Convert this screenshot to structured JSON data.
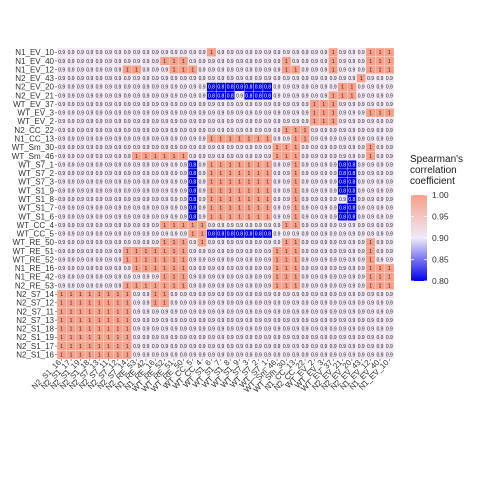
{
  "chart_data": {
    "type": "heatmap",
    "title": "",
    "xlabel": "",
    "ylabel": "",
    "rows": [
      "N1_EV_10",
      "N1_EV_40",
      "N1_EV_12",
      "N2_EV_43",
      "N2_EV_20",
      "N2_EV_21",
      "WT_EV_37",
      "WT_EV_3",
      "WT_EV_2",
      "N2_CC_22",
      "N1_CC_13",
      "WT_Sm_30",
      "WT_Sm_46",
      "WT_S7_1",
      "WT_S7_2",
      "WT_S7_3",
      "WT_S1_9",
      "WT_S1_8",
      "WT_S1_7",
      "WT_S1_6",
      "WT_CC_4",
      "WT_CC_5",
      "WT_RE_50",
      "WT_RE_51",
      "WT_RE_52",
      "N1_RE_16",
      "N1_RE_42",
      "N2_RE_53",
      "N2_S7_14",
      "N2_S7_12",
      "N2_S7_11",
      "N2_S7_13",
      "N2_S1_18",
      "N2_S1_19",
      "N2_S1_17",
      "N2_S1_16"
    ],
    "columns": [
      "N2_S1_16",
      "N2_S1_17",
      "N2_S1_19",
      "N2_S1_18",
      "N2_S7_13",
      "N2_S7_11",
      "N2_S7_12",
      "N2_S7_14",
      "N2_RE_53",
      "N1_RE_42",
      "N1_RE_16",
      "WT_RE_52",
      "WT_RE_51",
      "WT_RE_50",
      "WT_CC_5",
      "WT_CC_4",
      "WT_S1_6",
      "WT_S1_7",
      "WT_S1_8",
      "WT_S1_9",
      "WT_S7_3",
      "WT_S7_2",
      "WT_S7_1",
      "WT_Sm_46",
      "WT_Sm_30",
      "N1_CC_13",
      "N2_CC_22",
      "WT_EV_2",
      "WT_EV_3",
      "WT_EV_37",
      "N2_EV_21",
      "N2_EV_20",
      "N2_EV_43",
      "N1_EV_12",
      "N1_EV_40",
      "N1_EV_10"
    ],
    "values_text": [
      "0.9|0.9|0.9|0.9|0.9|0.9|0.9|0.9|0.9|0.9|0.9|0.9|0.9|0.9|0.9|0.9|1|0.9|0.9|0.9|0.9|0.9|0.9|0.9|0.9|0.9|0.9|0.9|0.9|1|0.9|0.9|0.9|1|1|1",
      "0.9|0.9|0.9|0.9|0.9|0.9|0.9|0.9|0.9|0.9|0.9|1|1|1|0.9|0.9|0.9|0.9|0.9|0.9|0.9|0.9|0.9|0.9|1|0.9|0.9|0.9|0.9|1|0.9|0.9|0.9|1|1|1",
      "0.9|0.9|0.9|0.9|0.9|0.9|0.9|1|1|0.9|0.9|0.9|1|1|1|0.9|0.9|0.9|0.9|0.9|0.9|0.9|0.9|0.9|1|1|0.9|0.9|0.9|1|0.9|0.9|0.9|1|1|1",
      "0.9|0.9|0.9|0.9|0.9|0.9|0.9|0.9|0.9|0.9|0.9|0.9|0.9|0.9|0.9|0.9|0.9|0.9|0.9|0.9|0.9|0.9|0.9|0.9|0.9|0.9|0.9|0.9|0.9|0.9|0.9|0.9|1|0.9|0.9|0.9",
      "0.9|0.9|0.9|0.9|0.9|0.9|0.9|0.9|0.9|0.9|0.9|0.9|0.9|0.9|0.9|0.9|0.8|0.8|0.8|0.8|0.8|0.8|0.8|0.9|0.9|0.9|0.9|0.9|0.9|0.9|1|1|0.9|0.9|0.9|0.9",
      "0.9|0.9|0.9|0.9|0.9|0.9|0.9|0.9|0.9|0.9|0.9|0.9|0.9|0.9|0.9|0.9|0.8|0.8|0.8|0.9|0.8|0.8|0.8|0.9|0.9|0.9|0.9|0.9|0.9|1|1|1|0.9|0.9|0.9|0.9",
      "0.9|0.9|0.9|0.9|0.9|0.9|0.9|0.9|0.9|0.9|0.9|0.9|0.9|0.9|0.9|0.9|0.9|0.9|0.9|0.9|0.9|0.9|0.9|0.9|0.9|0.9|0.9|1|1|1|0.9|0.9|0.9|0.9|0.9|0.9",
      "0.9|0.9|0.9|0.9|0.9|0.9|0.9|0.9|0.9|0.9|0.9|0.9|0.9|0.9|0.9|0.9|0.9|0.9|0.9|0.9|0.9|0.9|0.9|0.9|0.9|0.9|0.9|1|1|1|0.9|0.9|0.9|1|1|1",
      "0.9|0.9|0.9|0.9|0.9|0.9|0.9|0.9|0.9|0.9|0.9|0.9|0.9|0.9|0.9|0.9|0.9|0.9|0.9|0.9|0.9|0.9|0.9|0.9|0.9|0.9|0.9|1|1|1|0.9|0.9|0.9|0.9|0.9|0.9",
      "0.9|0.9|0.9|0.9|0.9|0.9|0.9|0.9|0.9|0.9|0.9|0.9|0.9|0.9|0.9|0.9|0.9|0.9|0.9|0.9|0.9|0.9|0.9|0.9|1|1|1|0.9|0.9|0.9|0.9|0.9|0.9|0.9|0.9|0.9",
      "0.9|0.9|0.9|0.9|0.9|0.9|0.9|0.9|0.9|0.9|0.9|0.9|0.9|0.9|0.9|0.9|1|1|1|1|1|1|1|0.9|0.9|1|1|0.9|0.9|0.9|0.9|0.9|0.9|0.9|0.9|0.9",
      "0.9|0.9|0.9|0.9|0.9|0.9|0.9|0.9|0.9|0.9|0.9|0.9|0.9|0.9|0.9|0.9|0.9|0.9|0.9|0.9|0.9|0.9|0.9|1|1|1|0.9|0.9|0.9|0.9|0.9|0.9|0.9|1|0.9|0.9",
      "0.9|0.9|0.9|0.9|0.9|0.9|0.9|0.9|1|1|1|1|1|1|0.9|0.9|0.9|0.9|0.9|0.9|0.9|0.9|0.9|1|1|1|0.9|0.9|0.9|0.9|0.9|0.9|0.9|1|0.9|0.9",
      "0.9|0.9|0.9|0.9|0.9|0.9|0.9|0.9|0.9|0.9|0.9|0.9|0.9|0.9|0.8|0.9|1|1|1|1|1|1|1|0.9|0.9|1|0.9|0.9|0.9|0.9|0.8|0.8|0.9|0.9|0.9|0.9",
      "0.9|0.9|0.9|0.9|0.9|0.9|0.9|0.9|0.9|0.9|0.9|0.9|0.9|0.9|0.8|0.9|1|1|1|1|1|1|1|0.9|0.9|1|0.9|0.9|0.9|0.9|0.8|0.8|0.9|0.9|0.9|0.9",
      "0.9|0.9|0.9|0.9|0.9|0.9|0.9|0.9|0.9|0.9|0.9|0.9|0.9|0.9|0.8|0.9|1|1|1|1|1|1|1|0.9|0.9|1|0.9|0.9|0.9|0.9|0.8|0.8|0.9|0.9|0.9|0.9",
      "0.9|0.9|0.9|0.9|0.9|0.9|0.9|0.9|0.9|0.9|0.9|0.9|0.9|0.9|0.8|0.9|1|1|1|1|1|1|1|0.9|0.9|1|0.9|0.9|0.9|0.9|0.8|0.8|0.9|0.9|0.9|0.9",
      "0.9|0.9|0.9|0.9|0.9|0.9|0.9|0.9|0.9|0.9|0.9|0.9|0.9|0.9|0.8|0.9|1|1|1|1|1|1|1|0.9|0.9|1|0.9|0.9|0.9|0.9|0.9|0.8|0.9|0.9|0.9|0.9",
      "0.9|0.9|0.9|0.9|0.9|0.9|0.9|0.9|0.9|0.9|0.9|0.9|0.9|0.9|0.8|0.9|1|1|1|1|1|1|1|0.9|0.9|1|0.9|0.9|0.9|0.9|0.8|0.8|0.9|0.9|0.9|0.9",
      "0.9|0.9|0.9|0.9|0.9|0.9|0.9|0.9|0.9|0.9|0.9|0.9|0.9|0.9|0.8|0.9|1|1|1|1|1|1|1|0.9|0.9|1|0.9|0.9|0.9|0.9|0.8|0.8|0.9|0.9|0.9|0.9",
      "0.9|0.9|0.9|0.9|0.9|0.9|0.9|0.9|0.9|0.9|0.9|1|1|1|1|1|0.9|0.9|0.9|0.9|0.9|0.9|0.9|0.9|1|1|0.9|0.9|0.9|0.9|0.9|0.9|0.9|0.9|0.9|0.9",
      "0.9|0.9|0.9|0.9|0.9|0.9|0.9|0.9|0.9|0.9|0.9|0.9|0.9|0.9|1|1|0.8|0.8|0.8|0.8|0.8|0.8|0.8|0.9|0.9|0.9|0.9|0.9|0.9|0.9|0.9|0.9|0.9|0.9|0.9|0.9",
      "0.9|0.9|0.9|0.9|0.9|0.9|0.9|0.9|0.9|0.9|0.9|1|1|1|0.9|1|0.9|0.9|0.9|0.9|0.9|0.9|0.9|0.9|1|1|0.9|0.9|0.9|0.9|0.9|0.9|0.9|1|0.9|0.9",
      "0.9|0.9|0.9|0.9|0.9|0.9|0.9|1|1|1|1|1|1|1|0.9|0.9|0.9|0.9|0.9|0.9|0.9|0.9|0.9|1|1|1|0.9|0.9|0.9|0.9|0.9|0.9|0.9|1|0.9|0.9",
      "0.9|0.9|0.9|0.9|0.9|0.9|0.9|1|1|1|1|1|1|1|0.9|0.9|0.9|0.9|0.9|0.9|0.9|0.9|0.9|1|1|1|0.9|0.9|0.9|0.9|0.9|0.9|0.9|1|0.9|0.9",
      "0.9|0.9|0.9|0.9|0.9|0.9|0.9|0.9|1|1|1|1|1|1|0.9|0.9|0.9|0.9|0.9|0.9|0.9|0.9|0.9|1|1|1|0.9|0.9|0.9|0.9|0.9|0.9|0.9|1|1|1",
      "0.9|0.9|0.9|0.9|0.9|0.9|0.9|0.9|0.9|0.9|0.9|1|1|1|0.9|0.9|0.9|0.9|0.9|0.9|0.9|0.9|0.9|1|1|1|0.9|0.9|0.9|0.9|0.9|0.9|0.9|1|1|1",
      "0.9|0.9|0.9|0.9|0.9|0.9|0.9|1|1|1|1|1|1|1|0.9|0.9|0.9|0.9|0.9|0.9|0.9|0.9|0.9|1|1|1|0.9|0.9|0.9|0.9|0.9|0.9|0.9|1|1|1",
      "1|1|1|1|1|1|1|1|0.9|0.9|1|1|0.9|0.9|0.9|0.9|0.9|0.9|0.9|0.9|0.9|0.9|0.9|0.9|0.9|0.9|0.9|0.9|0.9|0.9|0.9|0.9|0.9|0.9|0.9|0.9",
      "1|1|1|1|1|1|1|1|0.9|0.9|1|1|0.9|0.9|0.9|0.9|0.9|0.9|0.9|0.9|0.9|0.9|0.9|0.9|0.9|0.9|0.9|0.9|0.9|0.9|0.9|0.9|0.9|0.9|0.9|0.9",
      "1|1|1|1|1|1|1|1|0.9|0.9|0.9|0.9|0.9|0.9|0.9|0.9|0.9|0.9|0.9|0.9|0.9|0.9|0.9|0.9|0.9|0.9|0.9|0.9|0.9|0.9|0.9|0.9|0.9|0.9|0.9|0.9",
      "1|1|1|1|1|1|1|1|0.9|0.9|0.9|0.9|0.9|0.9|0.9|0.9|0.9|0.9|0.9|0.9|0.9|0.9|0.9|0.9|0.9|0.9|0.9|0.9|0.9|0.9|0.9|0.9|0.9|0.9|0.9|0.9",
      "1|1|1|1|1|1|1|1|0.9|0.9|0.9|0.9|0.9|0.9|0.9|0.9|0.9|0.9|0.9|0.9|0.9|0.9|0.9|0.9|0.9|0.9|0.9|0.9|0.9|0.9|0.9|0.9|0.9|0.9|0.9|0.9",
      "1|1|1|1|1|1|1|1|0.9|0.9|0.9|0.9|0.9|0.9|0.9|0.9|0.9|0.9|0.9|0.9|0.9|0.9|0.9|0.9|0.9|0.9|0.9|0.9|0.9|0.9|0.9|0.9|0.9|0.9|0.9|0.9",
      "1|1|1|1|1|1|1|1|0.9|0.9|0.9|0.9|0.9|0.9|0.9|0.9|0.9|0.9|0.9|0.9|0.9|0.9|0.9|0.9|0.9|0.9|0.9|0.9|0.9|0.9|0.9|0.9|0.9|0.9|0.9|0.9",
      "1|1|1|1|1|1|1|1|0.9|0.9|0.9|0.9|0.9|0.9|0.9|0.9|0.9|0.9|0.9|0.9|0.9|0.9|0.9|0.9|0.9|0.9|0.9|0.9|0.9|0.9|0.9|0.9|0.9|0.9|0.9|0.9"
    ],
    "legend": {
      "title_lines": [
        "Spearman's",
        "correlation",
        "coefficient"
      ],
      "ticks": [
        "1.00",
        "0.95",
        "0.90",
        "0.85",
        "0.80"
      ],
      "range": [
        0.8,
        1.0
      ],
      "placement": "right"
    },
    "colors": {
      "high": "#f8a089",
      "mid": "#efeaf8",
      "low": "#0000ee",
      "grid": "#ffffff",
      "text": "#1a1a1a"
    }
  }
}
